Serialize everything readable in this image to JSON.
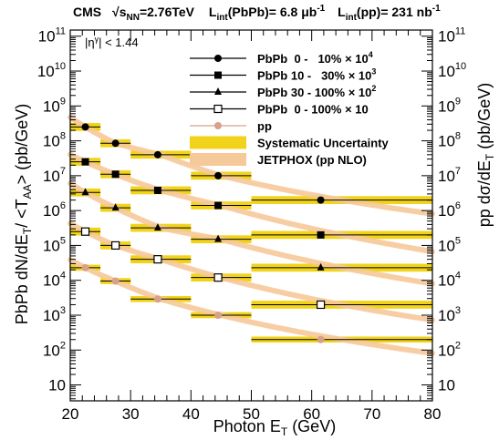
{
  "chart_data": {
    "type": "scatter",
    "header": {
      "experiment": "CMS",
      "energy_prefix": "√",
      "energy_var": "s",
      "energy_sub": "NN",
      "energy_value": "=2.76TeV",
      "lumi_pbpb_label": "L",
      "lumi_pbpb_sub": "int",
      "lumi_pbpb_text": "(PbPb)= 6.8 μb",
      "lumi_pbpb_exp": "-1",
      "lumi_pp_label": "L",
      "lumi_pp_sub": "int",
      "lumi_pp_text": "(pp)= 231 nb",
      "lumi_pp_exp": "-1"
    },
    "selection": "|η",
    "selection_sup": "γ",
    "selection_rest": "| < 1.44",
    "xlabel": "Photon E",
    "xlabel_sub": "T",
    "xlabel_unit": " (GeV)",
    "ylabel_left": "PbPb dN/dE",
    "ylabel_left_sub1": "T",
    "ylabel_left_mid": "/ <T",
    "ylabel_left_sub2": "AA",
    "ylabel_left_end": "> (pb/GeV)",
    "ylabel_right": "pp dσ/dE",
    "ylabel_right_sub": "T",
    "ylabel_right_unit": "  (pb/GeV)",
    "xlim": [
      20,
      80
    ],
    "ylim": [
      3.5,
      150000000000
    ],
    "yscale": "log",
    "xticks": [
      20,
      30,
      40,
      50,
      60,
      70,
      80
    ],
    "yticks": [
      10,
      100,
      1000,
      10000,
      100000,
      1000000,
      10000000,
      100000000,
      1000000000,
      10000000000,
      100000000000
    ],
    "ytick_mantissa": "10",
    "ytick_exponents": [
      "",
      "2",
      "3",
      "4",
      "5",
      "6",
      "7",
      "8",
      "9",
      "10",
      "11"
    ],
    "bins": [
      [
        20,
        25
      ],
      [
        25,
        30
      ],
      [
        30,
        40
      ],
      [
        40,
        50
      ],
      [
        50,
        80
      ]
    ],
    "x": [
      22.5,
      27.5,
      35,
      45,
      65
    ],
    "x_drawn": [
      22.5,
      27.5,
      34.5,
      44.5,
      61.5
    ],
    "series": [
      {
        "name": "PbPb  0 -   10% × 10",
        "exp": "4",
        "marker": "circle",
        "values": [
          250000000,
          85000000,
          40000000,
          10000000,
          2000000
        ],
        "sys_rel": 0.3
      },
      {
        "name": "PbPb 10 -   30% × 10",
        "exp": "3",
        "marker": "square",
        "values": [
          25000000,
          11000000,
          3800000,
          1400000,
          200000
        ],
        "sys_rel": 0.3
      },
      {
        "name": "PbPb 30 - 100% × 10",
        "exp": "2",
        "marker": "triangle",
        "values": [
          3300000,
          1200000,
          320000,
          150000,
          23000
        ],
        "sys_rel": 0.3
      },
      {
        "name": "PbPb  0 - 100% × 10",
        "exp": "",
        "marker": "open-square",
        "values": [
          250000,
          100000,
          40000,
          12000,
          2000
        ],
        "sys_rel": 0.3
      },
      {
        "name": "pp",
        "exp": "",
        "marker": "pp-circle",
        "values": [
          23000,
          9500,
          2900,
          1000,
          200
        ],
        "sys_rel": 0.22
      }
    ],
    "legend_extra": [
      "Systematic Uncertainty",
      "JETPHOX (pp NLO)"
    ],
    "legend_placement": "top-right",
    "colors": {
      "systematic": "#f2d31c",
      "jetphox": "#f6c99a",
      "pp_marker": "#d9a08a",
      "data_marker": "#000000"
    }
  }
}
